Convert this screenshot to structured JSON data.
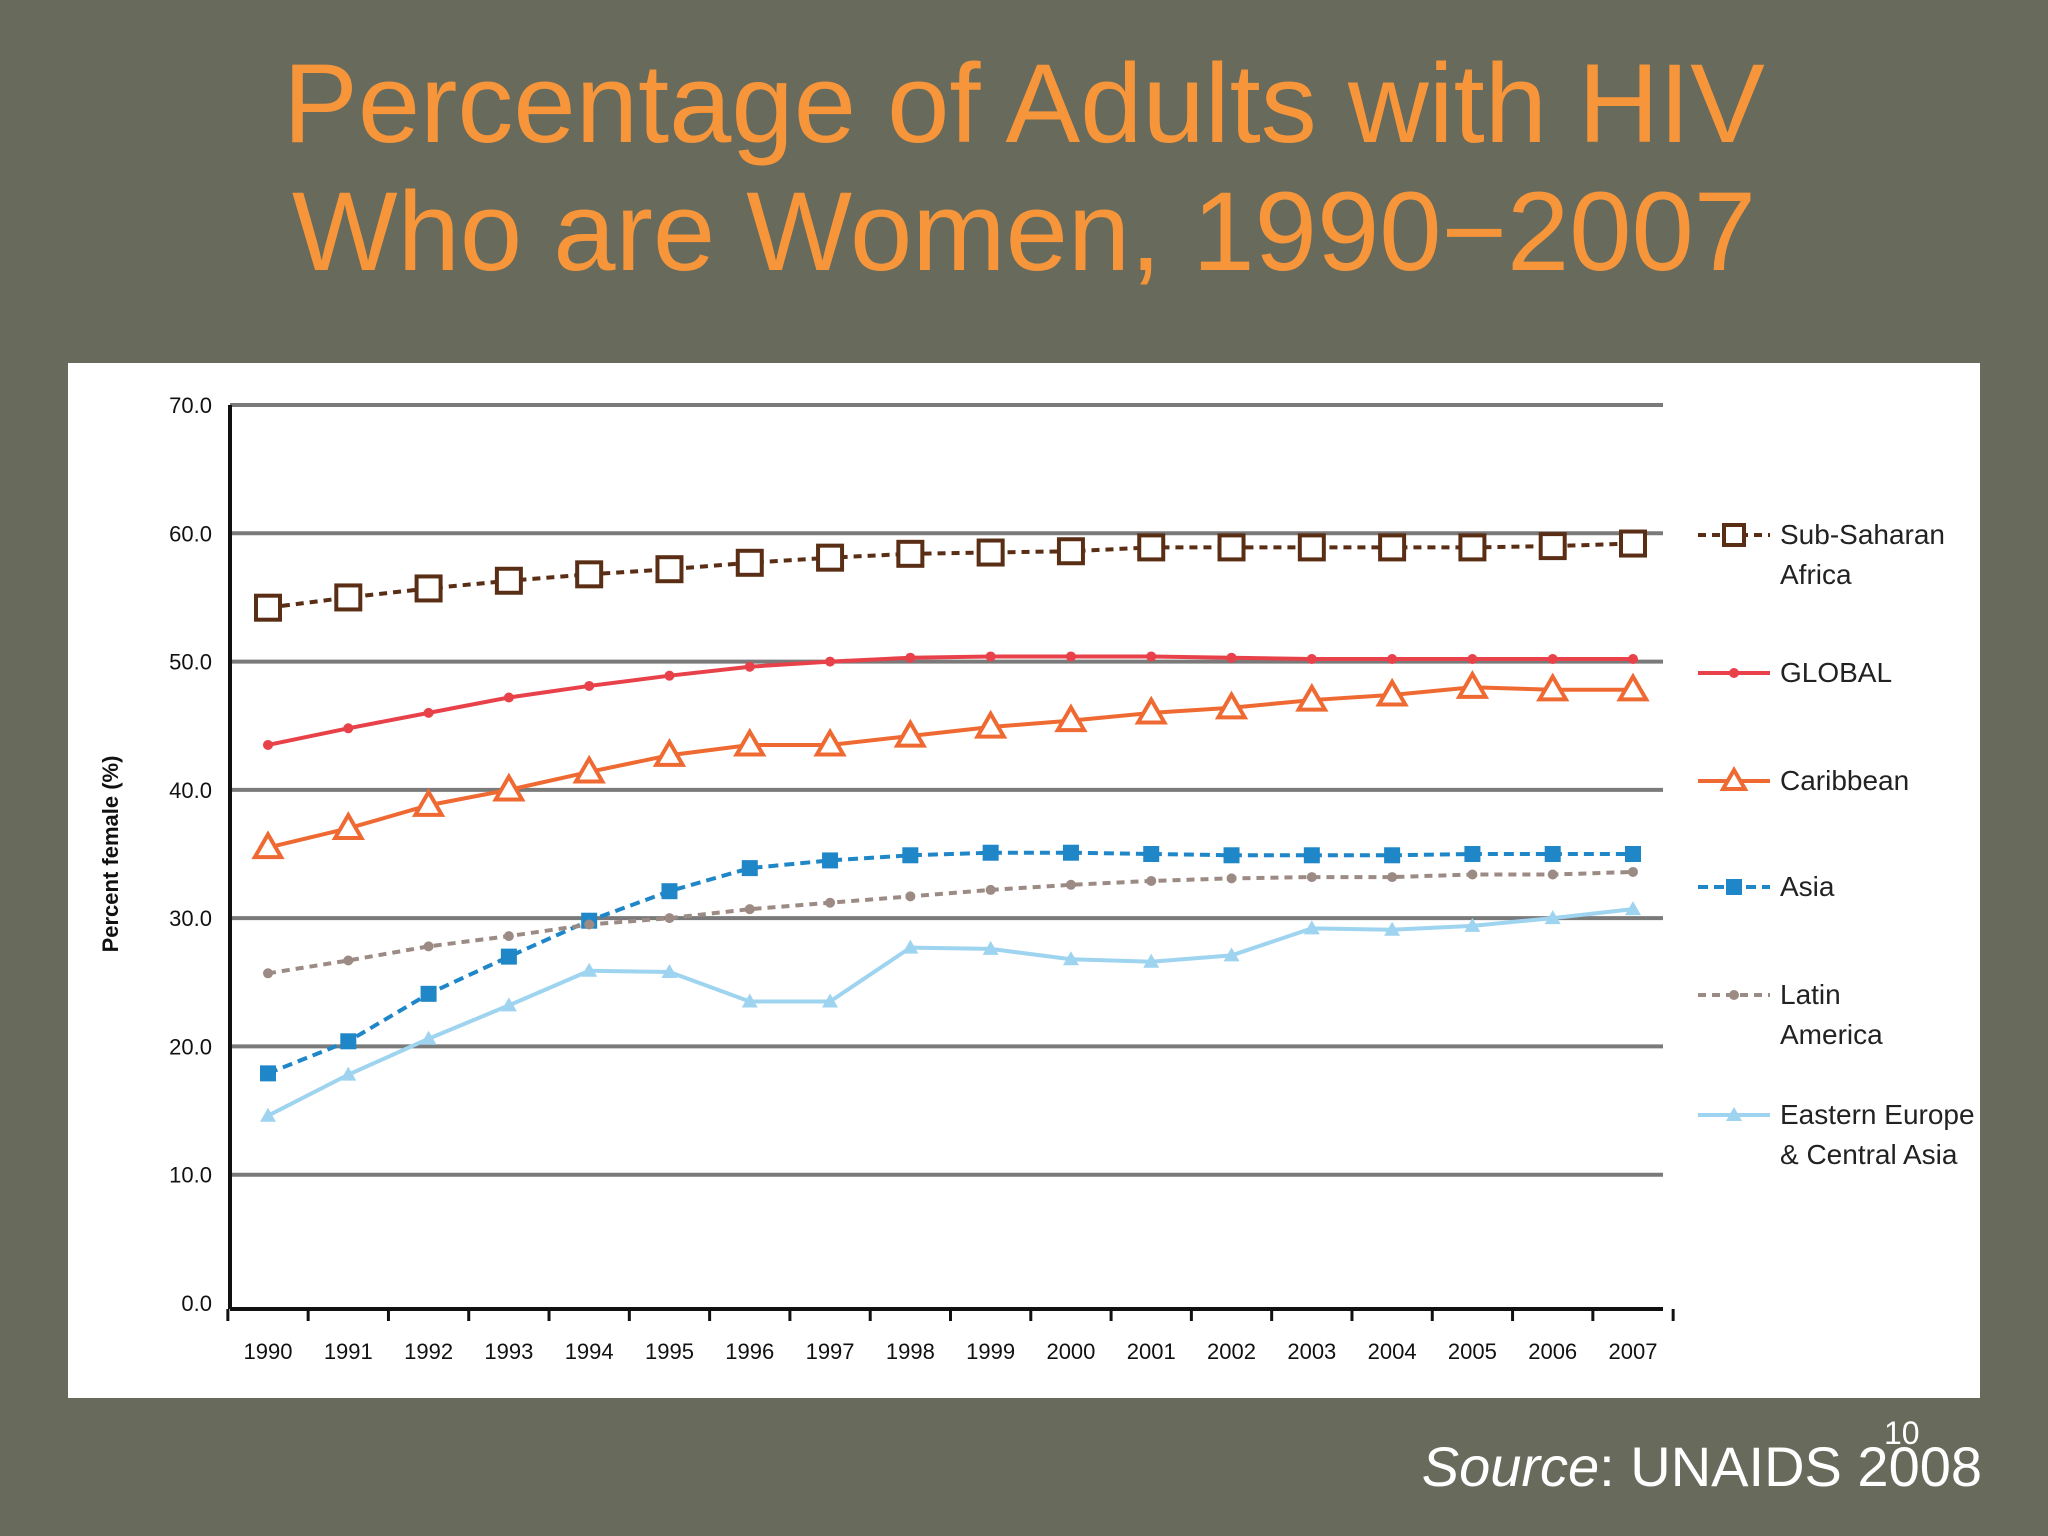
{
  "slide": {
    "title_line1": "Percentage of Adults with HIV",
    "title_line2": "Who are Women, 1990−2007",
    "source_label": "Source",
    "source_text": ": UNAIDS 2008",
    "page_number": "10",
    "colors": {
      "background": "#686a5b",
      "title": "#f7953a",
      "panel": "#ffffff"
    }
  },
  "chart_data": {
    "type": "line",
    "title": "",
    "xlabel": "",
    "ylabel": "Percent female (%)",
    "ylim": [
      0,
      70
    ],
    "yticks": [
      "0.0",
      "10.0",
      "20.0",
      "30.0",
      "40.0",
      "50.0",
      "60.0",
      "70.0"
    ],
    "grid": true,
    "legend_position": "right",
    "categories": [
      "1990",
      "1991",
      "1992",
      "1993",
      "1994",
      "1995",
      "1996",
      "1997",
      "1998",
      "1999",
      "2000",
      "2001",
      "2002",
      "2003",
      "2004",
      "2005",
      "2006",
      "2007"
    ],
    "series": [
      {
        "name": "Sub-Saharan Africa",
        "legend_lines": [
          "Sub-Saharan",
          "Africa"
        ],
        "color": "#5a2e14",
        "marker": "open-square",
        "dash": "8,6",
        "values": [
          54.2,
          55.0,
          55.7,
          56.3,
          56.8,
          57.2,
          57.7,
          58.1,
          58.4,
          58.5,
          58.6,
          58.9,
          58.9,
          58.9,
          58.9,
          58.9,
          59.0,
          59.2
        ]
      },
      {
        "name": "GLOBAL",
        "legend_lines": [
          "GLOBAL"
        ],
        "color": "#e8414a",
        "marker": "dot",
        "dash": "",
        "values": [
          43.5,
          44.8,
          46.0,
          47.2,
          48.1,
          48.9,
          49.6,
          50.0,
          50.3,
          50.4,
          50.4,
          50.4,
          50.3,
          50.2,
          50.2,
          50.2,
          50.2,
          50.2
        ]
      },
      {
        "name": "Caribbean",
        "legend_lines": [
          "Caribbean"
        ],
        "color": "#ef6a32",
        "marker": "open-triangle",
        "dash": "",
        "values": [
          35.5,
          37.0,
          38.8,
          40.0,
          41.4,
          42.7,
          43.5,
          43.5,
          44.2,
          44.9,
          45.4,
          46.0,
          46.4,
          47.0,
          47.4,
          48.0,
          47.8,
          47.8
        ]
      },
      {
        "name": "Asia",
        "legend_lines": [
          "Asia"
        ],
        "color": "#1f86c8",
        "marker": "square",
        "dash": "10,6",
        "values": [
          17.9,
          20.4,
          24.1,
          27.0,
          29.8,
          32.1,
          33.9,
          34.5,
          34.9,
          35.1,
          35.1,
          35.0,
          34.9,
          34.9,
          34.9,
          35.0,
          35.0,
          35.0
        ]
      },
      {
        "name": "Latin America",
        "legend_lines": [
          "Latin",
          "America"
        ],
        "color": "#9c8b84",
        "marker": "dot",
        "dash": "8,6",
        "values": [
          25.7,
          26.7,
          27.8,
          28.6,
          29.5,
          30.0,
          30.7,
          31.2,
          31.7,
          32.2,
          32.6,
          32.9,
          33.1,
          33.2,
          33.2,
          33.4,
          33.4,
          33.6
        ]
      },
      {
        "name": "Eastern Europe & Central Asia",
        "legend_lines": [
          "Eastern Europe",
          "& Central Asia"
        ],
        "color": "#9ed4ef",
        "marker": "triangle",
        "dash": "",
        "values": [
          14.6,
          17.8,
          20.6,
          23.2,
          25.9,
          25.8,
          23.5,
          23.5,
          27.7,
          27.6,
          26.8,
          26.6,
          27.1,
          29.2,
          29.1,
          29.4,
          30.0,
          30.7
        ]
      }
    ]
  }
}
